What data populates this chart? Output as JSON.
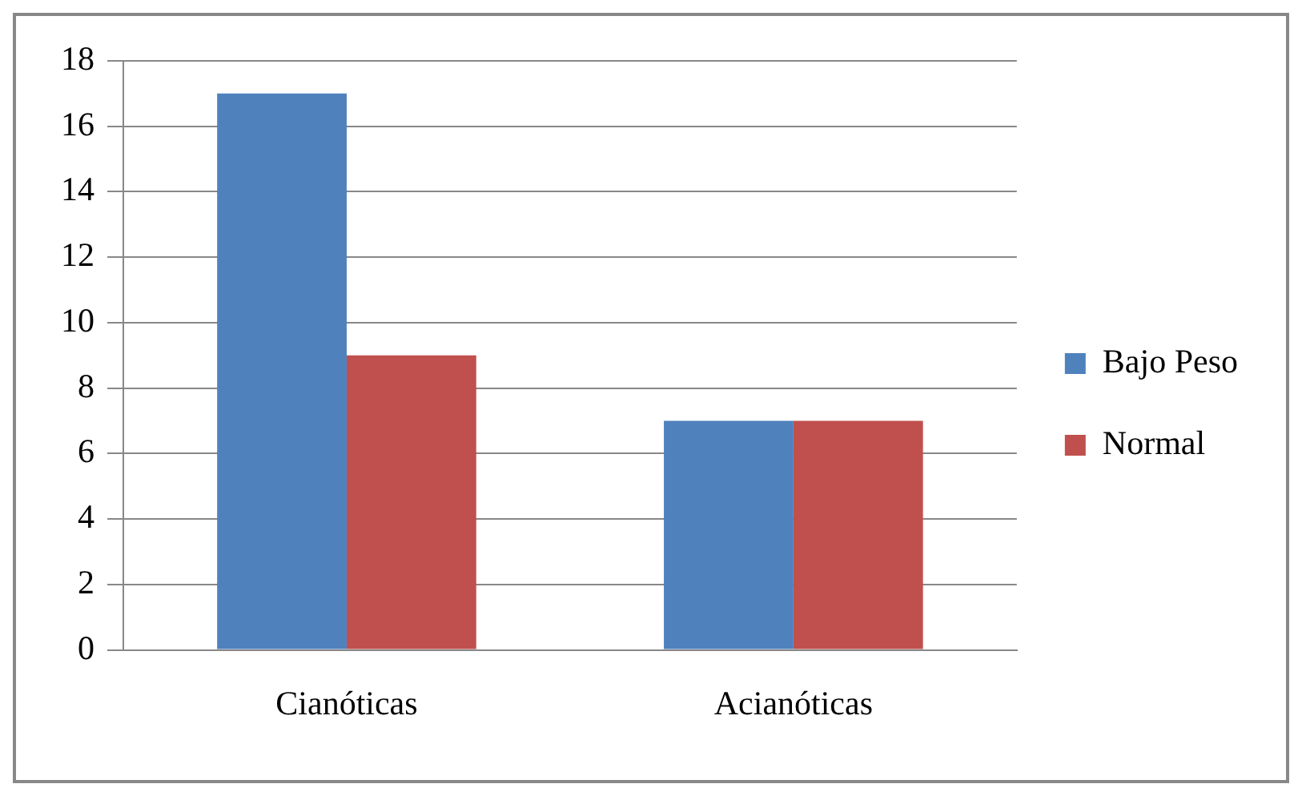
{
  "chart_data": {
    "type": "bar",
    "categories": [
      "Cianóticas",
      "Acianóticas"
    ],
    "series": [
      {
        "name": "Bajo Peso",
        "color": "#4f81bd",
        "values": [
          17,
          7
        ]
      },
      {
        "name": "Normal",
        "color": "#c0504d",
        "values": [
          9,
          7
        ]
      }
    ],
    "ylim": [
      0,
      18
    ],
    "yticks": [
      0,
      2,
      4,
      6,
      8,
      10,
      12,
      14,
      16,
      18
    ],
    "grid": "y",
    "legend": "right"
  }
}
